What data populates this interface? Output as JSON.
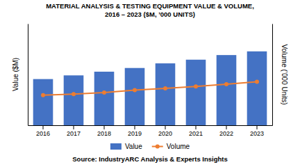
{
  "chart_data": {
    "type": "bar",
    "title": "MATERIAL ANALYSIS & TESTING EQUIPMENT VALUE & VOLUME,",
    "subtitle": "2016 – 2023 ($M, ’000 UNITS)",
    "categories": [
      "2016",
      "2017",
      "2018",
      "2019",
      "2020",
      "2021",
      "2022",
      "2023"
    ],
    "series": [
      {
        "name": "Value",
        "type": "bar",
        "color": "#4472C4",
        "values": [
          5.0,
          5.4,
          5.8,
          6.2,
          6.7,
          7.1,
          7.6,
          8.0
        ]
      },
      {
        "name": "Volume",
        "type": "line",
        "axis": "y2",
        "color": "#ED7D31",
        "marker": "circle",
        "values": [
          1.3,
          1.35,
          1.42,
          1.52,
          1.6,
          1.68,
          1.78,
          1.88
        ]
      }
    ],
    "ylabel": "Value ($M)",
    "y2label": "Volume (’000 Units)",
    "ylim": [
      0,
      11
    ],
    "y2lim": [
      0,
      4.4
    ],
    "tick_labels": "x",
    "grid": false,
    "legend": "bottom",
    "source": "Source: IndustryARC Analysis & Experts Insights"
  }
}
